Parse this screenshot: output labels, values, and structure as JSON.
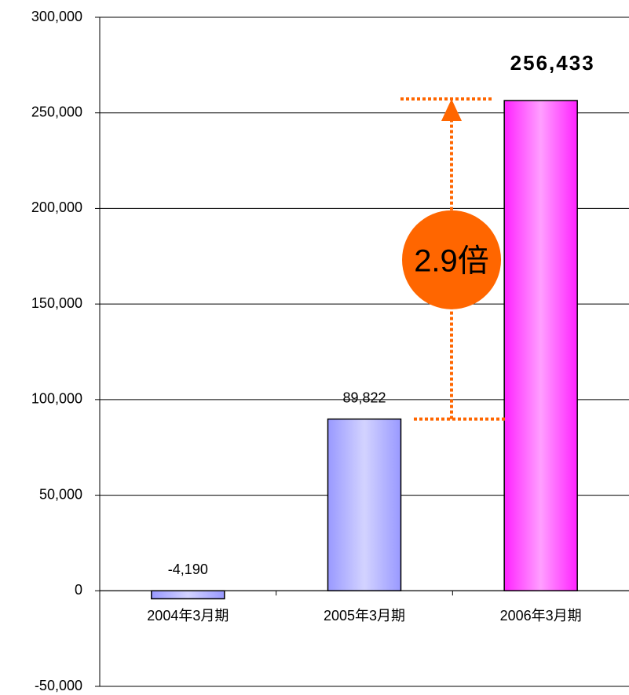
{
  "chart_data": {
    "type": "bar",
    "categories": [
      "2004年3月期",
      "2005年3月期",
      "2006年3月期"
    ],
    "values": [
      -4190,
      89822,
      256433
    ],
    "value_labels": [
      "-4,190",
      "89,822",
      "256,433"
    ],
    "colors": [
      "#9999ff",
      "#9999ff",
      "#ff22ff"
    ],
    "ylim": [
      -50000,
      300000
    ],
    "yticks": [
      {
        "value": -50000,
        "label": "-50,000"
      },
      0,
      {
        "value": 50000,
        "label": "50,000"
      },
      {
        "value": 100000,
        "label": "100,000"
      },
      {
        "value": 150000,
        "label": "150,000"
      },
      {
        "value": 200000,
        "label": "200,000"
      },
      {
        "value": 250000,
        "label": "250,000"
      },
      {
        "value": 300000,
        "label": "300,000"
      }
    ],
    "grid": true,
    "annotation": "2.9倍"
  }
}
